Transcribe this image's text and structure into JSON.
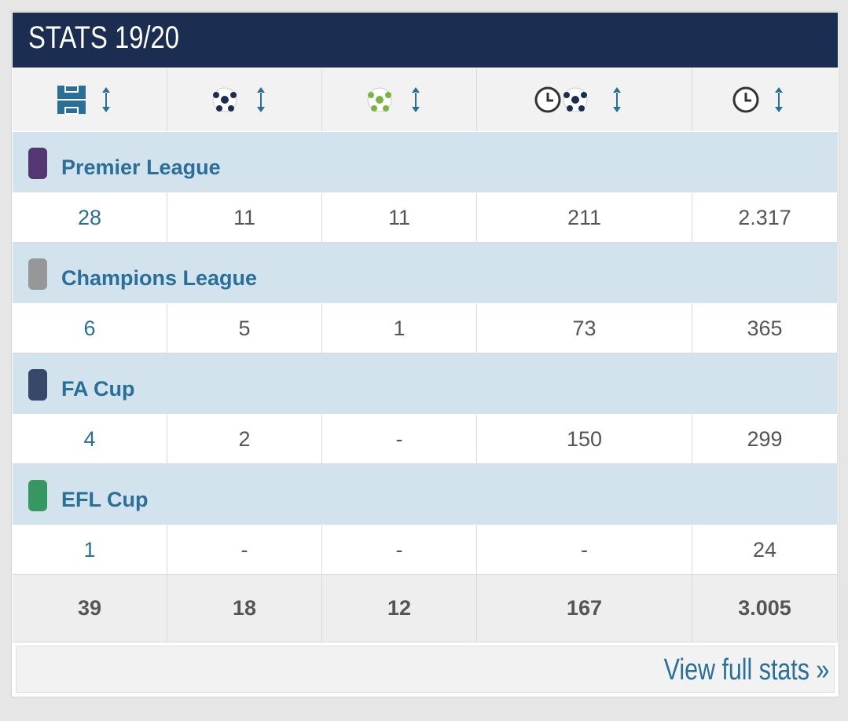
{
  "header": {
    "title": "STATS 19/20"
  },
  "table": {
    "competitions": [
      {
        "name": "Premier League",
        "values": [
          "28",
          "11",
          "11",
          "211",
          "2.317"
        ]
      },
      {
        "name": "Champions League",
        "values": [
          "6",
          "5",
          "1",
          "73",
          "365"
        ]
      },
      {
        "name": "FA Cup",
        "values": [
          "4",
          "2",
          "-",
          "150",
          "299"
        ]
      },
      {
        "name": "EFL Cup",
        "values": [
          "1",
          "-",
          "-",
          "-",
          "24"
        ]
      }
    ],
    "totals": [
      "39",
      "18",
      "12",
      "167",
      "3.005"
    ]
  },
  "footer": {
    "link": "View full stats »"
  }
}
